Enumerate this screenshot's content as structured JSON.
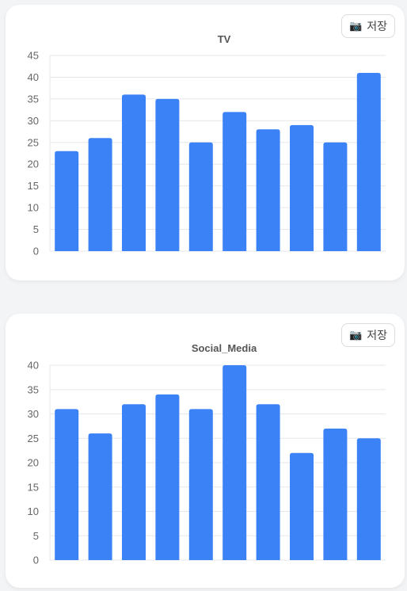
{
  "save_label": "저장",
  "camera_icon": "📷",
  "colors": {
    "bar": "#3b82f6",
    "grid": "#e5e7eb"
  },
  "chart_data": [
    {
      "type": "bar",
      "title": "TV",
      "categories": [
        "",
        "",
        "",
        "",
        "",
        "",
        "",
        "",
        "",
        ""
      ],
      "values": [
        23,
        26,
        36,
        35,
        25,
        32,
        28,
        29,
        25,
        41
      ],
      "ylim": [
        0,
        45
      ],
      "yticks": [
        0,
        5,
        10,
        15,
        20,
        25,
        30,
        35,
        40,
        45
      ],
      "grid": true,
      "legend": "none"
    },
    {
      "type": "bar",
      "title": "Social_Media",
      "categories": [
        "",
        "",
        "",
        "",
        "",
        "",
        "",
        "",
        "",
        ""
      ],
      "values": [
        31,
        26,
        32,
        34,
        31,
        40,
        32,
        22,
        27,
        25
      ],
      "ylim": [
        0,
        40
      ],
      "yticks": [
        0,
        5,
        10,
        15,
        20,
        25,
        30,
        35,
        40
      ],
      "grid": true,
      "legend": "none"
    }
  ]
}
